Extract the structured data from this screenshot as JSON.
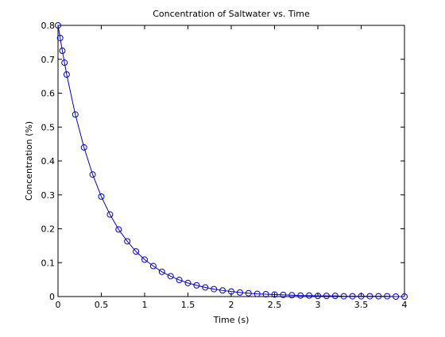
{
  "colors": {
    "background": "#ffffff",
    "axes": "#000000",
    "series": "#0000cc"
  },
  "chart_data": {
    "type": "line",
    "title": "Concentration of Saltwater vs. Time",
    "xlabel": "Time (s)",
    "ylabel": "Concentration (%)",
    "xlim": [
      0,
      4
    ],
    "ylim": [
      0,
      0.8
    ],
    "x_ticks": [
      0,
      0.5,
      1,
      1.5,
      2,
      2.5,
      3,
      3.5,
      4
    ],
    "x_tick_labels": [
      "0",
      "0.5",
      "1",
      "1.5",
      "2",
      "2.5",
      "3",
      "3.5",
      "4"
    ],
    "y_ticks": [
      0,
      0.1,
      0.2,
      0.3,
      0.4,
      0.5,
      0.6,
      0.7,
      0.8
    ],
    "y_tick_labels": [
      "0",
      "0.1",
      "0.2",
      "0.3",
      "0.4",
      "0.5",
      "0.6",
      "0.7",
      "0.8"
    ],
    "grid": false,
    "marker": "circle",
    "series": [
      {
        "color": "#0000cc",
        "x": [
          0,
          0.025,
          0.05,
          0.075,
          0.1,
          0.2,
          0.3,
          0.4,
          0.5,
          0.6,
          0.7,
          0.8,
          0.9,
          1.0,
          1.1,
          1.2,
          1.3,
          1.4,
          1.5,
          1.6,
          1.7,
          1.8,
          1.9,
          2.0,
          2.1,
          2.2,
          2.3,
          2.4,
          2.5,
          2.6,
          2.7,
          2.8,
          2.9,
          3.0,
          3.1,
          3.2,
          3.3,
          3.4,
          3.5,
          3.6,
          3.7,
          3.8,
          3.9,
          4.0
        ],
        "y": [
          0.8,
          0.763,
          0.725,
          0.69,
          0.655,
          0.537,
          0.44,
          0.36,
          0.295,
          0.242,
          0.198,
          0.163,
          0.133,
          0.109,
          0.09,
          0.073,
          0.06,
          0.049,
          0.04,
          0.033,
          0.027,
          0.022,
          0.018,
          0.015,
          0.012,
          0.01,
          0.008,
          0.007,
          0.006,
          0.005,
          0.004,
          0.003,
          0.003,
          0.002,
          0.002,
          0.002,
          0.001,
          0.001,
          0.001,
          0.001,
          0.001,
          0.001,
          0.0,
          0.0
        ]
      }
    ]
  }
}
